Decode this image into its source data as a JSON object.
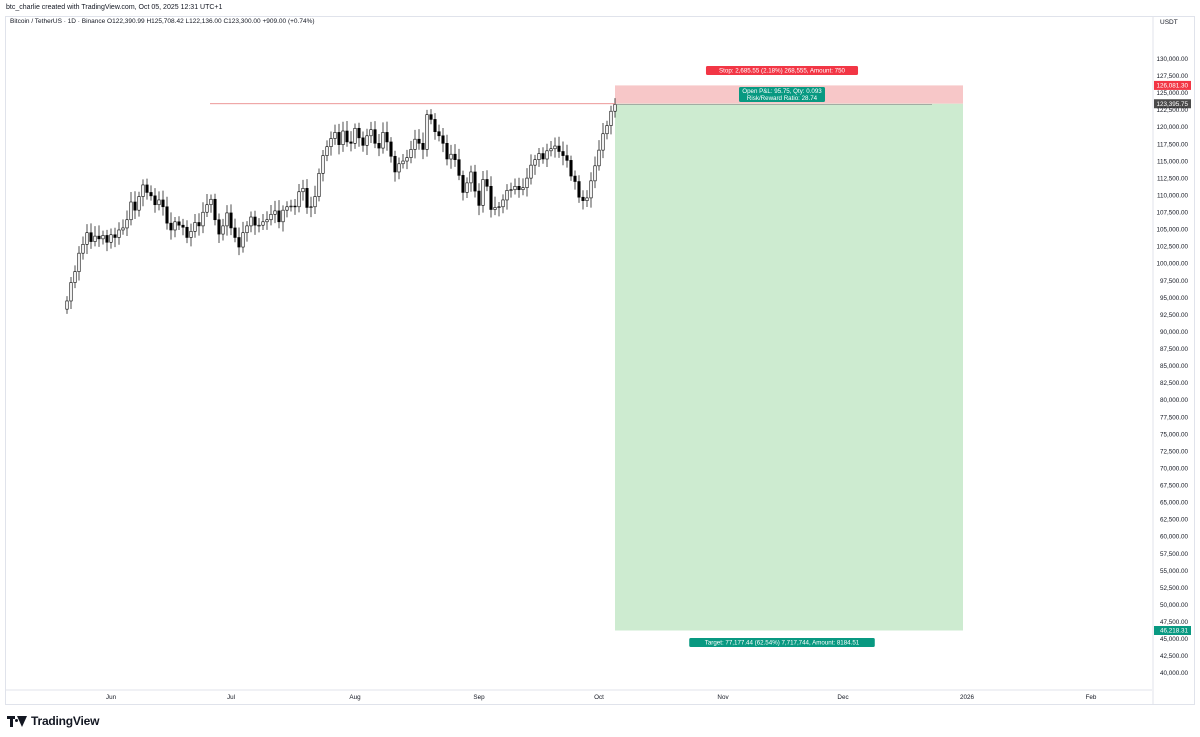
{
  "header": {
    "credit": "btc_charlie created with TradingView.com, Oct 05, 2025 12:31 UTC+1",
    "legend": "Bitcoin / TetherUS · 1D · Binance  O122,390.99  H125,708.42  L122,136.00  C123,300.00  +909.00 (+0.74%)",
    "currency": "USDT"
  },
  "branding": {
    "logo_text": "TradingView"
  },
  "colors": {
    "up_body": "#ffffff",
    "down_body": "#000000",
    "candle_border": "#000000",
    "stop_zone": "#f7c7c8",
    "target_zone": "#cdebd0",
    "stop_label": "#f23645",
    "target_label": "#089981",
    "entry_line": "#e57373",
    "last_price": "#4a4a4a"
  },
  "chart_data": {
    "type": "candlestick",
    "symbol": "Bitcoin / TetherUS",
    "interval": "1D",
    "exchange": "Binance",
    "ylim": [
      37500,
      135000
    ],
    "y_ticks": [
      40000,
      42500,
      45000,
      47500,
      50000,
      52500,
      55000,
      57500,
      60000,
      62500,
      65000,
      67500,
      70000,
      72500,
      75000,
      77500,
      80000,
      82500,
      85000,
      87500,
      90000,
      92500,
      95000,
      97500,
      100000,
      102500,
      105000,
      107500,
      110000,
      112500,
      115000,
      117500,
      120000,
      122500,
      125000,
      127500,
      130000
    ],
    "y_tick_labels": [
      "40,000.00",
      "42,500.00",
      "45,000.00",
      "47,500.00",
      "50,000.00",
      "52,500.00",
      "55,000.00",
      "57,500.00",
      "60,000.00",
      "62,500.00",
      "65,000.00",
      "67,500.00",
      "70,000.00",
      "72,500.00",
      "75,000.00",
      "77,500.00",
      "80,000.00",
      "82,500.00",
      "85,000.00",
      "87,500.00",
      "90,000.00",
      "92,500.00",
      "95,000.00",
      "97,500.00",
      "100,000.00",
      "102,500.00",
      "105,000.00",
      "107,500.00",
      "110,000.00",
      "112,500.00",
      "115,000.00",
      "117,500.00",
      "120,000.00",
      "122,500.00",
      "125,000.00",
      "127,500.00",
      "130,000.00"
    ],
    "x_range": [
      "2025-05-01",
      "2026-02-28"
    ],
    "x_ticks": [
      {
        "date": "2025-06-01",
        "label": "Jun"
      },
      {
        "date": "2025-07-01",
        "label": "Jul"
      },
      {
        "date": "2025-08-01",
        "label": "Aug"
      },
      {
        "date": "2025-09-01",
        "label": "Sep"
      },
      {
        "date": "2025-10-01",
        "label": "Oct"
      },
      {
        "date": "2025-11-01",
        "label": "Nov"
      },
      {
        "date": "2025-12-01",
        "label": "Dec"
      },
      {
        "date": "2026-01-01",
        "label": "2026"
      },
      {
        "date": "2026-02-01",
        "label": "Feb"
      }
    ],
    "closes": [
      94500,
      97200,
      98800,
      101500,
      102800,
      104500,
      103200,
      104000,
      103600,
      104100,
      103100,
      104200,
      103800,
      104900,
      105200,
      106400,
      109000,
      107800,
      109800,
      111500,
      110400,
      109900,
      108600,
      109300,
      108300,
      105900,
      104900,
      106100,
      105600,
      105300,
      103800,
      104700,
      106000,
      105500,
      107500,
      108600,
      109400,
      106400,
      104300,
      105500,
      107400,
      105200,
      103800,
      102400,
      104500,
      105500,
      106800,
      105600,
      105600,
      106100,
      106400,
      107200,
      107700,
      106100,
      107800,
      108300,
      108400,
      108300,
      110500,
      111000,
      108200,
      108300,
      109800,
      113200,
      115800,
      117100,
      118300,
      119200,
      117400,
      119400,
      117800,
      117600,
      119800,
      118400,
      117300,
      118700,
      119600,
      117600,
      116900,
      119200,
      117800,
      115700,
      113400,
      114600,
      115000,
      115500,
      116700,
      118200,
      117600,
      116700,
      121800,
      121100,
      119300,
      118700,
      117600,
      115300,
      116000,
      115200,
      112900,
      110400,
      111800,
      113400,
      110600,
      108500,
      112300,
      111300,
      107900,
      108200,
      108300,
      109300,
      110700,
      110800,
      111300,
      110800,
      111100,
      112500,
      114400,
      115200,
      116100,
      115300,
      116500,
      116800,
      117200,
      116400,
      115800,
      115100,
      112800,
      112000,
      109700,
      109200,
      109600,
      112100,
      114300,
      116600,
      119000,
      120200,
      122300,
      123300
    ],
    "last_close": 123300,
    "entry_line_price": 123396,
    "position": {
      "type": "short",
      "entry": 123395.75,
      "stop": 126081.3,
      "target": 46218.31,
      "start_date": "2025-10-05",
      "end_date": "2025-12-31"
    },
    "horizontal_line_price": 123300,
    "labels": {
      "stop": "Stop: 2,685.55 (2.18%) 268,555, Amount: 750",
      "open_pl": "Open P&L: 95.75, Qty: 0.093",
      "risk_reward": "Risk/Reward Ratio: 28.74",
      "target": "Target: 77,177.44 (62.54%) 7,717,744, Amount: 8184.51",
      "stop_price": "126,081.30",
      "entry_price": "123,395.75",
      "target_price": "46,218.31"
    }
  }
}
